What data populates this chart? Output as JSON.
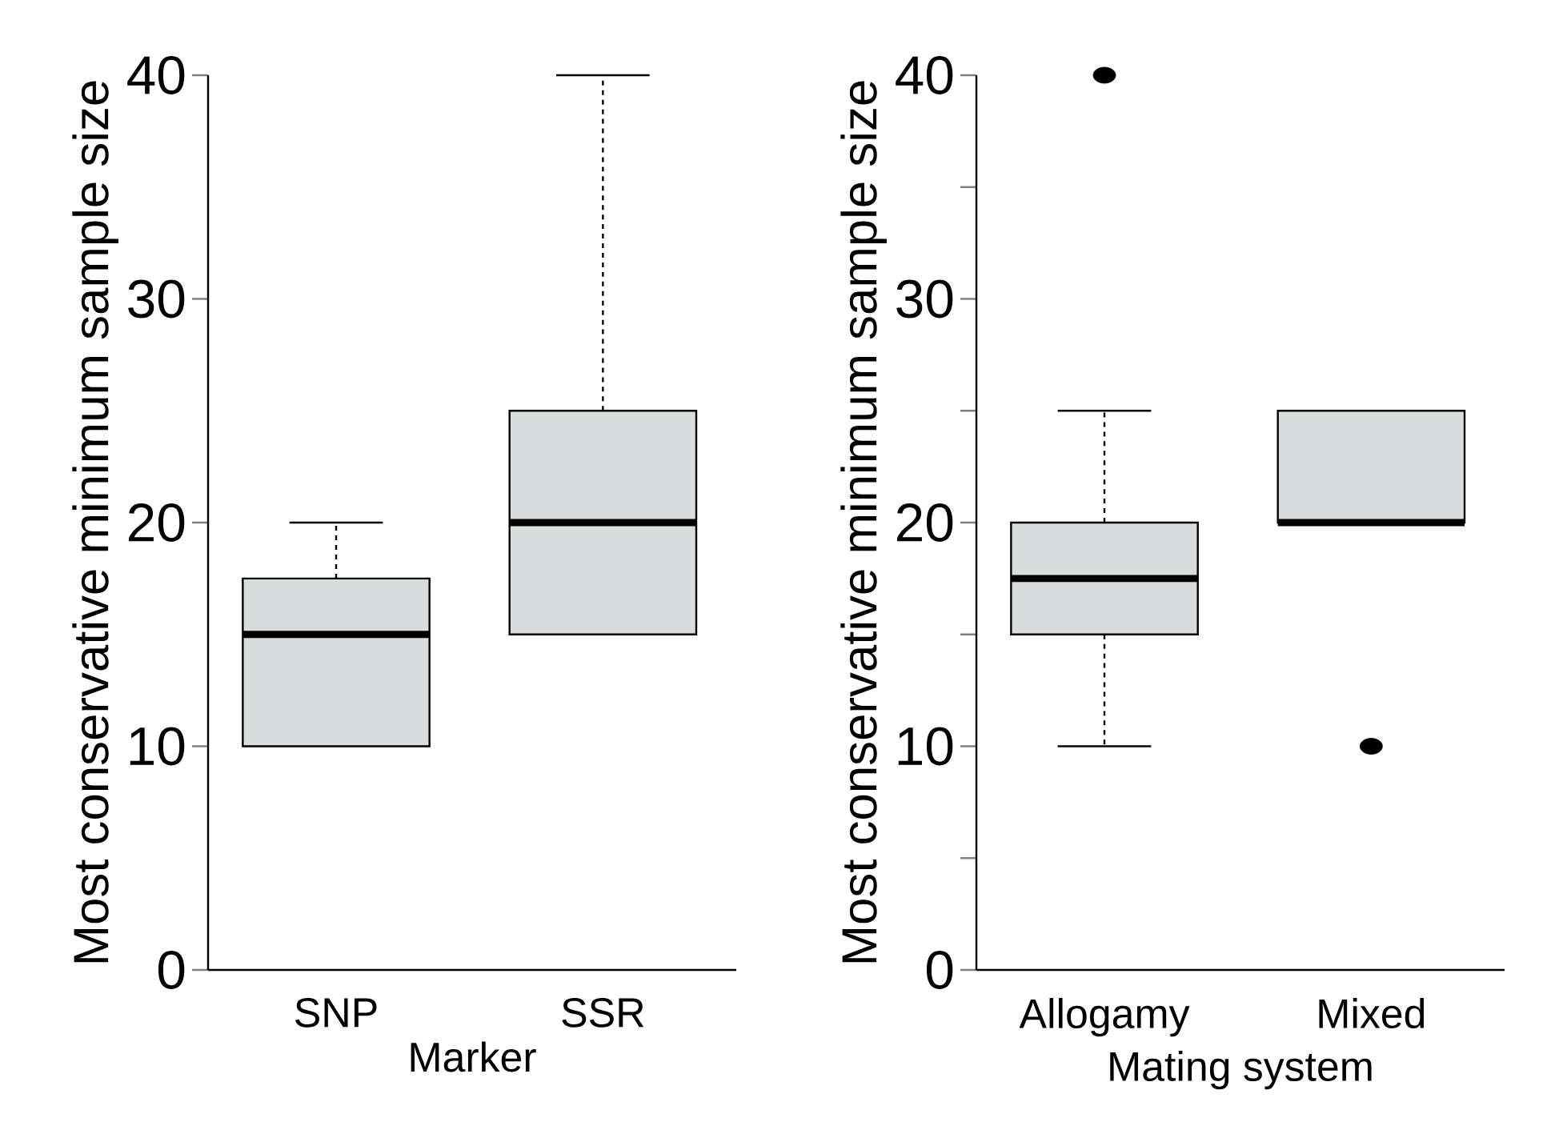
{
  "chart_data": [
    {
      "type": "box",
      "xlabel": "Marker",
      "ylabel": "Most conservative minimum sample size",
      "categories": [
        "SNP",
        "SSR"
      ],
      "color": "#d9dcdc",
      "boxes": [
        {
          "low": 10,
          "q1": 10,
          "median": 15,
          "q3": 17.5,
          "high": 20
        },
        {
          "low": 15,
          "q1": 15,
          "median": 20,
          "q3": 25,
          "high": 40
        }
      ],
      "ylim": [
        0,
        40
      ],
      "yticks": [
        0,
        10,
        20,
        30,
        40
      ]
    },
    {
      "type": "box",
      "xlabel": "Mating system",
      "ylabel": "Most conservative minimum sample size",
      "categories": [
        "Allogamy",
        "Mixed"
      ],
      "color": "#d9dcdc",
      "boxes": [
        {
          "low": 10,
          "q1": 15,
          "median": 17.5,
          "q3": 20,
          "high": 25,
          "outliers": [
            40
          ]
        },
        {
          "low": 20,
          "q1": 20,
          "median": 20,
          "q3": 25,
          "high": 25,
          "outliers": [
            10
          ]
        }
      ],
      "ylim": [
        0,
        40
      ],
      "yticks": [
        0,
        {
          "value": 5,
          "label": null
        },
        10,
        {
          "value": 15,
          "label": null
        },
        20,
        {
          "value": 25,
          "label": null
        },
        30,
        {
          "value": 35,
          "label": null
        },
        40
      ]
    }
  ]
}
